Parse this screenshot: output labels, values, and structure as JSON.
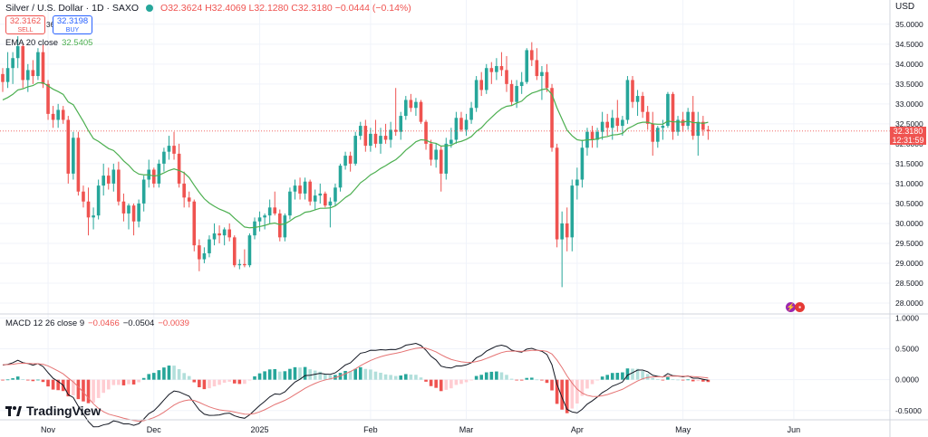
{
  "header": {
    "symbol": "Silver / U.S. Dollar · 1D · SAXO",
    "ohlc": "O32.3624 H32.4069 L32.1280 C32.3180 −0.0444 (−0.14%)",
    "sell_price": "32.3162",
    "sell_label": "SELL",
    "buy_price": "32.3198",
    "buy_label": "BUY",
    "spread": "36",
    "currency": "USD"
  },
  "ema_legend": {
    "label": "EMA 20 close",
    "value": "32.5405"
  },
  "macd_legend": {
    "label": "MACD 12 26 close 9",
    "hist": "−0.0466",
    "macd": "−0.0504",
    "signal": "−0.0039"
  },
  "price_tag": {
    "price": "32.3180",
    "countdown": "12:31:59"
  },
  "logo_text": "TradingView",
  "colors": {
    "up": "#26a69a",
    "down": "#ef5350",
    "ema": "#4caf50",
    "macd": "#131722",
    "signal": "#e57373",
    "grid": "#f0f3fa"
  },
  "chart_data": {
    "type": "candlestick",
    "title": "Silver / U.S. Dollar · 1D · SAXO",
    "price_axis": {
      "ylim": [
        27.75,
        35.2
      ],
      "ticks": [
        "35.0000",
        "34.5000",
        "34.0000",
        "33.5000",
        "33.0000",
        "32.5000",
        "32.0000",
        "31.5000",
        "31.0000",
        "30.5000",
        "30.0000",
        "29.5000",
        "29.0000",
        "28.5000",
        "28.0000"
      ],
      "tick_values": [
        35,
        34.5,
        34,
        33.5,
        33,
        32.5,
        32,
        31.5,
        31,
        30.5,
        30,
        29.5,
        29,
        28.5,
        28
      ]
    },
    "macd_axis": {
      "ylim": [
        -0.62,
        1.05
      ],
      "ticks": [
        "1.0000",
        "0.5000",
        "0.0000",
        "-0.5000"
      ],
      "tick_values": [
        1,
        0.5,
        0,
        -0.5
      ]
    },
    "time_axis": {
      "labels": [
        "Nov",
        "Dec",
        "2025",
        "Feb",
        "Mar",
        "Apr",
        "May",
        "Jun"
      ],
      "label_bar_index": [
        9,
        30,
        51,
        73,
        92,
        114,
        135,
        157
      ]
    },
    "candles": [
      [
        33.75,
        33.9,
        33.3,
        33.55
      ],
      [
        33.55,
        34.3,
        33.4,
        33.9
      ],
      [
        33.9,
        34.3,
        33.5,
        34.15
      ],
      [
        34.15,
        34.7,
        33.9,
        34.45
      ],
      [
        34.45,
        34.5,
        33.4,
        33.6
      ],
      [
        33.6,
        34.0,
        33.3,
        33.85
      ],
      [
        33.85,
        34.1,
        33.5,
        33.7
      ],
      [
        33.7,
        34.4,
        33.6,
        34.3
      ],
      [
        34.3,
        34.5,
        33.4,
        33.5
      ],
      [
        33.5,
        33.6,
        32.6,
        32.75
      ],
      [
        32.75,
        32.95,
        32.4,
        32.6
      ],
      [
        32.6,
        33.0,
        32.4,
        32.85
      ],
      [
        32.85,
        32.95,
        32.5,
        32.6
      ],
      [
        32.6,
        32.7,
        31.0,
        31.25
      ],
      [
        31.25,
        32.3,
        31.1,
        32.15
      ],
      [
        32.15,
        32.3,
        30.7,
        30.8
      ],
      [
        30.8,
        30.95,
        30.4,
        30.55
      ],
      [
        30.55,
        30.9,
        29.7,
        30.15
      ],
      [
        30.15,
        30.4,
        29.85,
        30.2
      ],
      [
        30.2,
        31.1,
        30.1,
        30.95
      ],
      [
        30.95,
        31.5,
        30.7,
        31.2
      ],
      [
        31.2,
        31.4,
        30.85,
        31.0
      ],
      [
        31.0,
        31.5,
        30.8,
        31.35
      ],
      [
        31.35,
        31.55,
        30.45,
        30.55
      ],
      [
        30.55,
        30.75,
        30.05,
        30.25
      ],
      [
        30.25,
        30.5,
        29.85,
        30.45
      ],
      [
        30.45,
        30.5,
        29.7,
        30.05
      ],
      [
        30.05,
        30.6,
        29.9,
        30.5
      ],
      [
        30.5,
        31.2,
        30.3,
        31.1
      ],
      [
        31.1,
        31.6,
        30.9,
        31.35
      ],
      [
        31.35,
        31.4,
        30.9,
        31.0
      ],
      [
        31.0,
        31.6,
        30.9,
        31.5
      ],
      [
        31.5,
        31.9,
        31.3,
        31.8
      ],
      [
        31.8,
        32.2,
        31.6,
        31.95
      ],
      [
        31.95,
        32.3,
        31.6,
        31.75
      ],
      [
        31.75,
        32.0,
        30.9,
        31.0
      ],
      [
        31.0,
        31.3,
        30.4,
        30.65
      ],
      [
        30.65,
        30.8,
        30.4,
        30.55
      ],
      [
        30.55,
        30.6,
        29.3,
        29.45
      ],
      [
        29.45,
        29.6,
        28.8,
        29.1
      ],
      [
        29.1,
        29.4,
        29.0,
        29.25
      ],
      [
        29.25,
        29.7,
        29.15,
        29.6
      ],
      [
        29.6,
        30.0,
        29.45,
        29.75
      ],
      [
        29.75,
        29.95,
        29.5,
        29.7
      ],
      [
        29.7,
        29.9,
        29.45,
        29.85
      ],
      [
        29.85,
        30.0,
        29.55,
        29.65
      ],
      [
        29.65,
        29.7,
        28.9,
        28.95
      ],
      [
        28.95,
        29.1,
        28.85,
        28.98
      ],
      [
        28.98,
        29.35,
        28.9,
        28.95
      ],
      [
        28.95,
        29.75,
        28.9,
        29.7
      ],
      [
        29.7,
        30.15,
        29.6,
        30.05
      ],
      [
        30.05,
        30.3,
        29.8,
        30.15
      ],
      [
        30.15,
        30.25,
        29.85,
        30.2
      ],
      [
        30.2,
        30.6,
        30.0,
        30.4
      ],
      [
        30.4,
        30.8,
        30.2,
        30.25
      ],
      [
        30.25,
        30.35,
        29.55,
        29.65
      ],
      [
        29.65,
        30.25,
        29.55,
        30.2
      ],
      [
        30.2,
        30.9,
        30.1,
        30.8
      ],
      [
        30.8,
        31.1,
        30.6,
        30.95
      ],
      [
        30.95,
        31.15,
        30.6,
        30.75
      ],
      [
        30.75,
        31.15,
        30.6,
        31.05
      ],
      [
        31.05,
        31.1,
        30.45,
        30.55
      ],
      [
        30.55,
        30.85,
        30.35,
        30.7
      ],
      [
        30.7,
        31.0,
        30.5,
        30.75
      ],
      [
        30.75,
        30.8,
        30.4,
        30.45
      ],
      [
        30.45,
        30.65,
        29.9,
        30.55
      ],
      [
        30.55,
        31.0,
        30.45,
        30.9
      ],
      [
        30.9,
        31.5,
        30.8,
        31.45
      ],
      [
        31.45,
        31.8,
        31.35,
        31.7
      ],
      [
        31.7,
        31.8,
        31.3,
        31.5
      ],
      [
        31.5,
        32.3,
        31.45,
        32.2
      ],
      [
        32.2,
        32.55,
        32.1,
        32.45
      ],
      [
        32.45,
        32.6,
        31.8,
        31.95
      ],
      [
        31.95,
        32.4,
        31.8,
        32.25
      ],
      [
        32.25,
        32.6,
        31.9,
        32.0
      ],
      [
        32.0,
        32.4,
        31.75,
        32.2
      ],
      [
        32.2,
        32.5,
        32.0,
        32.1
      ],
      [
        32.1,
        32.55,
        31.9,
        32.35
      ],
      [
        32.35,
        33.4,
        32.2,
        32.3
      ],
      [
        32.3,
        32.8,
        32.1,
        32.7
      ],
      [
        32.7,
        33.2,
        32.6,
        33.1
      ],
      [
        33.1,
        33.25,
        32.8,
        32.9
      ],
      [
        32.9,
        33.15,
        32.7,
        33.05
      ],
      [
        33.05,
        33.1,
        32.5,
        32.55
      ],
      [
        32.55,
        32.6,
        31.85,
        32.0
      ],
      [
        32.0,
        32.1,
        31.45,
        31.6
      ],
      [
        31.6,
        32.0,
        31.4,
        31.85
      ],
      [
        31.85,
        31.95,
        30.8,
        31.25
      ],
      [
        31.25,
        32.15,
        31.1,
        32.0
      ],
      [
        32.0,
        32.4,
        31.9,
        32.1
      ],
      [
        32.1,
        32.8,
        32.0,
        32.65
      ],
      [
        32.65,
        32.8,
        32.3,
        32.35
      ],
      [
        32.35,
        32.75,
        32.2,
        32.6
      ],
      [
        32.6,
        33.05,
        32.5,
        32.9
      ],
      [
        32.9,
        33.7,
        32.8,
        33.6
      ],
      [
        33.6,
        33.8,
        33.2,
        33.35
      ],
      [
        33.35,
        34.0,
        33.25,
        33.9
      ],
      [
        33.9,
        34.05,
        33.5,
        33.8
      ],
      [
        33.8,
        34.15,
        33.6,
        33.95
      ],
      [
        33.95,
        34.3,
        33.7,
        33.85
      ],
      [
        33.85,
        34.2,
        33.3,
        33.5
      ],
      [
        33.5,
        33.6,
        32.95,
        33.05
      ],
      [
        33.05,
        33.6,
        32.9,
        33.45
      ],
      [
        33.45,
        33.8,
        33.25,
        33.55
      ],
      [
        33.55,
        34.4,
        33.5,
        34.35
      ],
      [
        34.35,
        34.55,
        33.95,
        34.1
      ],
      [
        34.1,
        34.4,
        33.6,
        33.7
      ],
      [
        33.7,
        33.95,
        33.1,
        33.8
      ],
      [
        33.8,
        34.0,
        33.3,
        33.4
      ],
      [
        33.4,
        33.5,
        31.8,
        31.9
      ],
      [
        31.9,
        32.0,
        29.4,
        29.6
      ],
      [
        29.6,
        30.3,
        28.4,
        30.0
      ],
      [
        30.0,
        30.4,
        29.3,
        29.65
      ],
      [
        29.65,
        31.1,
        29.3,
        30.95
      ],
      [
        30.95,
        31.4,
        30.6,
        31.1
      ],
      [
        31.1,
        32.1,
        30.9,
        31.9
      ],
      [
        31.9,
        32.4,
        31.7,
        32.3
      ],
      [
        32.3,
        32.45,
        31.9,
        32.1
      ],
      [
        32.1,
        32.4,
        31.9,
        32.3
      ],
      [
        32.3,
        32.8,
        32.1,
        32.55
      ],
      [
        32.55,
        32.75,
        32.2,
        32.4
      ],
      [
        32.4,
        32.85,
        32.1,
        32.65
      ],
      [
        32.65,
        33.1,
        32.3,
        32.45
      ],
      [
        32.45,
        32.7,
        32.2,
        32.6
      ],
      [
        32.6,
        33.7,
        32.5,
        33.6
      ],
      [
        33.6,
        33.7,
        32.9,
        33.05
      ],
      [
        33.05,
        33.35,
        32.7,
        33.2
      ],
      [
        33.2,
        33.3,
        32.65,
        32.8
      ],
      [
        32.8,
        32.95,
        32.35,
        32.5
      ],
      [
        32.5,
        32.8,
        31.7,
        32.05
      ],
      [
        32.05,
        32.45,
        31.9,
        32.4
      ],
      [
        32.4,
        32.6,
        32.1,
        32.45
      ],
      [
        32.45,
        33.3,
        32.4,
        33.25
      ],
      [
        33.25,
        33.3,
        32.1,
        32.3
      ],
      [
        32.3,
        32.7,
        32.2,
        32.6
      ],
      [
        32.6,
        32.8,
        32.3,
        32.45
      ],
      [
        32.45,
        32.9,
        32.35,
        32.8
      ],
      [
        32.8,
        33.2,
        32.1,
        32.2
      ],
      [
        32.2,
        32.8,
        31.7,
        32.55
      ],
      [
        32.55,
        32.7,
        32.2,
        32.35
      ],
      [
        32.35,
        32.45,
        32.1,
        32.32
      ]
    ],
    "ema20": [
      33.1,
      33.16,
      33.24,
      33.35,
      33.38,
      33.43,
      33.46,
      33.53,
      33.53,
      33.45,
      33.37,
      33.31,
      33.24,
      33.05,
      32.98,
      32.77,
      32.56,
      32.33,
      32.13,
      32.06,
      31.97,
      31.88,
      31.83,
      31.71,
      31.57,
      31.46,
      31.32,
      31.24,
      31.22,
      31.22,
      31.19,
      31.21,
      31.27,
      31.33,
      31.37,
      31.33,
      31.27,
      31.15,
      30.96,
      30.78,
      30.62,
      30.51,
      30.43,
      30.36,
      30.31,
      30.25,
      30.13,
      30.02,
      29.91,
      29.89,
      29.9,
      29.92,
      29.95,
      29.99,
      30.01,
      29.97,
      29.99,
      30.06,
      30.15,
      30.2,
      30.28,
      30.3,
      30.34,
      30.38,
      30.38,
      30.39,
      30.44,
      30.54,
      30.65,
      30.73,
      30.87,
      31.02,
      31.11,
      31.22,
      31.29,
      31.38,
      31.45,
      31.53,
      31.6,
      31.71,
      31.84,
      31.94,
      32.05,
      32.1,
      32.09,
      32.03,
      32.01,
      31.94,
      31.95,
      31.96,
      32.03,
      32.06,
      32.11,
      32.18,
      32.31,
      32.4,
      32.54,
      32.66,
      32.78,
      32.88,
      32.94,
      32.96,
      33.02,
      33.07,
      33.19,
      33.27,
      33.31,
      33.36,
      33.38,
      33.24,
      32.9,
      32.62,
      32.34,
      32.2,
      32.1,
      32.08,
      32.1,
      32.1,
      32.12,
      32.16,
      32.18,
      32.22,
      32.23,
      32.26,
      32.38,
      32.44,
      32.51,
      32.54,
      32.54,
      32.5,
      32.49,
      32.49,
      32.57,
      32.55,
      32.55,
      32.54,
      32.57,
      32.53,
      32.53,
      32.51,
      32.54
    ]
  }
}
